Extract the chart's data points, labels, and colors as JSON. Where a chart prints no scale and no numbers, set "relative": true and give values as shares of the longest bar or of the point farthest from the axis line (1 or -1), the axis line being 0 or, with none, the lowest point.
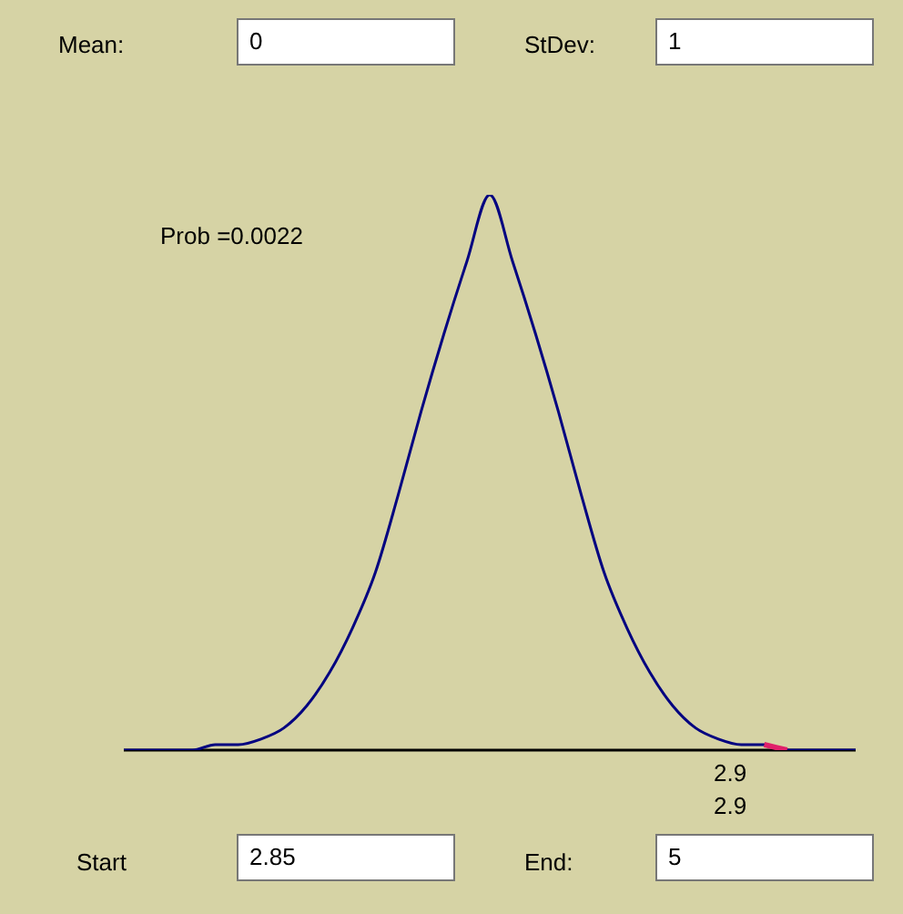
{
  "chart_data": {
    "type": "line",
    "relative": true,
    "marker": "none",
    "legend": false,
    "categories": [
      null,
      null,
      null,
      null,
      null,
      null,
      null,
      null,
      null,
      null,
      null,
      null,
      null,
      null,
      null,
      null,
      null,
      null,
      null,
      null,
      null,
      null,
      null,
      null,
      null,
      null,
      null,
      null,
      null,
      null,
      null,
      null,
      null
    ],
    "series": [
      {
        "color": "#000080",
        "values": [
          0,
          0,
          0,
          0,
          0.01,
          0.01,
          0.02,
          0.04,
          0.08,
          0.14,
          0.22,
          0.32,
          0.46,
          0.61,
          0.75,
          0.88,
          1,
          0.88,
          0.75,
          0.61,
          0.46,
          0.32,
          0.22,
          0.14,
          0.08,
          0.04,
          0.02,
          0.01,
          0.01,
          0,
          0,
          0,
          0
        ]
      },
      {
        "color": "#e0206a",
        "values": [
          null,
          null,
          null,
          null,
          null,
          null,
          null,
          null,
          null,
          null,
          null,
          null,
          null,
          null,
          null,
          null,
          null,
          null,
          null,
          null,
          null,
          null,
          null,
          null,
          null,
          null,
          null,
          null,
          0.01,
          0,
          null,
          null,
          null
        ]
      }
    ],
    "annotations": [
      "Mean:",
      "0",
      "StDev:",
      "1",
      "Prob =0.0022",
      "2.9",
      "2.9",
      "Start",
      "2.85",
      "End:",
      "5"
    ]
  }
}
